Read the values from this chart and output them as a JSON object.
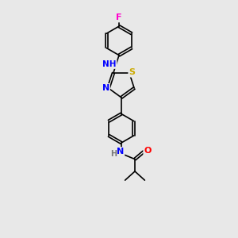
{
  "background_color": "#e8e8e8",
  "bond_color": "#000000",
  "atom_colors": {
    "N": "#0000ff",
    "O": "#ff0000",
    "S": "#ccaa00",
    "F": "#ff00cc",
    "C": "#000000",
    "H": "#777777"
  },
  "figsize": [
    3.0,
    3.0
  ],
  "dpi": 100
}
